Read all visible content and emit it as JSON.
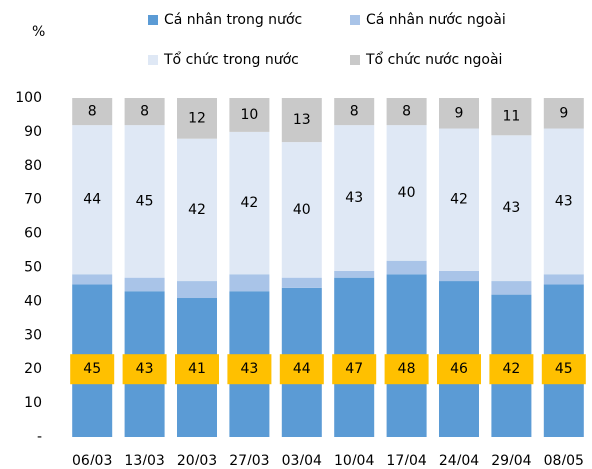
{
  "chart_data": {
    "type": "stacked_bar",
    "y_label": "%",
    "categories": [
      "06/03",
      "13/03",
      "20/03",
      "27/03",
      "03/04",
      "10/04",
      "17/04",
      "24/04",
      "29/04",
      "08/05"
    ],
    "series": [
      {
        "name": "Cá nhân trong nước",
        "color": "#5b9bd5",
        "data_labels": true,
        "values": [
          45,
          43,
          41,
          43,
          44,
          47,
          48,
          46,
          42,
          45
        ]
      },
      {
        "name": "Cá nhân nước ngoài",
        "color": "#a9c4e8",
        "data_labels": false,
        "values": [
          3,
          4,
          5,
          5,
          3,
          2,
          4,
          3,
          4,
          3
        ]
      },
      {
        "name": "Tổ chức trong nước",
        "color": "#dfe8f5",
        "data_labels": true,
        "values": [
          44,
          45,
          42,
          42,
          40,
          43,
          40,
          42,
          43,
          43
        ]
      },
      {
        "name": "Tổ chức nước ngoài",
        "color": "#c9c9c9",
        "data_labels": true,
        "values": [
          8,
          8,
          12,
          10,
          13,
          8,
          8,
          9,
          11,
          9
        ]
      }
    ],
    "ylim": [
      0,
      100
    ],
    "yticks": [
      {
        "value": 0,
        "label": "-"
      },
      10,
      20,
      30,
      40,
      50,
      60,
      70,
      80,
      90,
      100
    ],
    "label_box_color": "#ffc000"
  }
}
